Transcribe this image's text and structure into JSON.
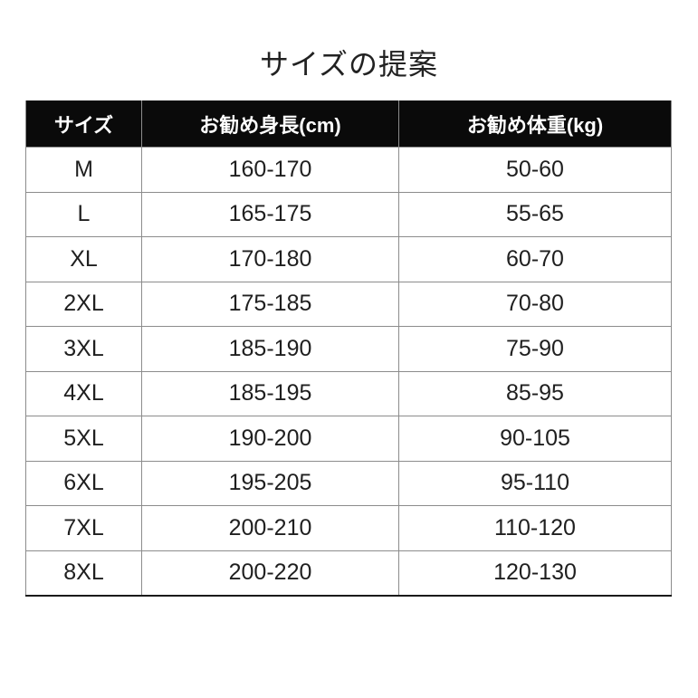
{
  "page": {
    "title": "サイズの提案"
  },
  "table": {
    "columns": [
      {
        "key": "size",
        "label": "サイズ"
      },
      {
        "key": "height",
        "label": "お勧め身長(cm)"
      },
      {
        "key": "weight",
        "label": "お勧め体重(kg)"
      }
    ],
    "rows": [
      {
        "size": "M",
        "height": "160-170",
        "weight": "50-60"
      },
      {
        "size": "L",
        "height": "165-175",
        "weight": "55-65"
      },
      {
        "size": "XL",
        "height": "170-180",
        "weight": "60-70"
      },
      {
        "size": "2XL",
        "height": "175-185",
        "weight": "70-80"
      },
      {
        "size": "3XL",
        "height": "185-190",
        "weight": "75-90"
      },
      {
        "size": "4XL",
        "height": "185-195",
        "weight": "85-95"
      },
      {
        "size": "5XL",
        "height": "190-200",
        "weight": "90-105"
      },
      {
        "size": "6XL",
        "height": "195-205",
        "weight": "95-110"
      },
      {
        "size": "7XL",
        "height": "200-210",
        "weight": "110-120"
      },
      {
        "size": "8XL",
        "height": "200-220",
        "weight": "120-130"
      }
    ]
  },
  "chart_data": {
    "type": "table",
    "title": "サイズの提案",
    "columns": [
      "サイズ",
      "お勧め身長(cm)",
      "お勧め体重(kg)"
    ],
    "rows": [
      [
        "M",
        "160-170",
        "50-60"
      ],
      [
        "L",
        "165-175",
        "55-65"
      ],
      [
        "XL",
        "170-180",
        "60-70"
      ],
      [
        "2XL",
        "175-185",
        "70-80"
      ],
      [
        "3XL",
        "185-190",
        "75-90"
      ],
      [
        "4XL",
        "185-195",
        "85-95"
      ],
      [
        "5XL",
        "190-200",
        "90-105"
      ],
      [
        "6XL",
        "195-205",
        "95-110"
      ],
      [
        "7XL",
        "200-210",
        "110-120"
      ],
      [
        "8XL",
        "200-220",
        "120-130"
      ]
    ]
  },
  "colors": {
    "background": "#ffffff",
    "header_bg": "#0a0a0a",
    "header_text": "#ffffff",
    "grid_line": "#8c8c8c",
    "body_text": "#1f1f1f",
    "bottom_border": "#1a1a1a",
    "title_text": "#222222"
  }
}
